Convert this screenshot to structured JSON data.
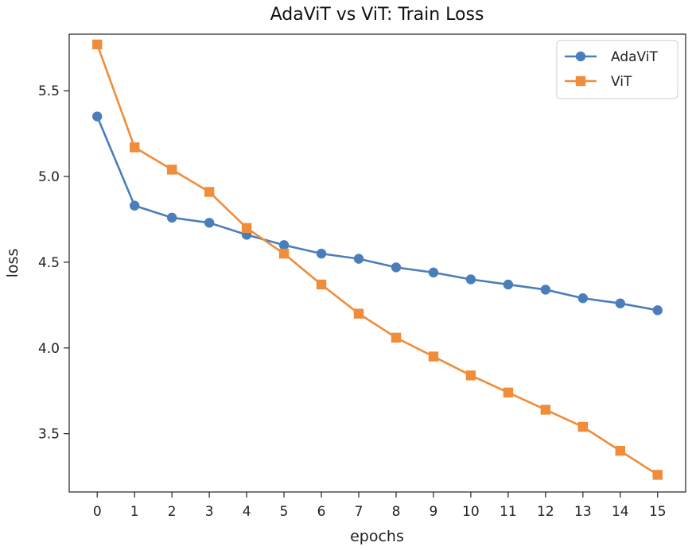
{
  "chart_data": {
    "type": "line",
    "title": "AdaViT vs ViT: Train Loss",
    "xlabel": "epochs",
    "ylabel": "loss",
    "x": [
      0,
      1,
      2,
      3,
      4,
      5,
      6,
      7,
      8,
      9,
      10,
      11,
      12,
      13,
      14,
      15
    ],
    "xlim": [
      -0.75,
      15.75
    ],
    "ylim": [
      3.16,
      5.83
    ],
    "xticks": [
      "0",
      "1",
      "2",
      "3",
      "4",
      "5",
      "6",
      "7",
      "8",
      "9",
      "10",
      "11",
      "12",
      "13",
      "14",
      "15"
    ],
    "yticks": [
      {
        "value": 3.5,
        "label": "3.5"
      },
      {
        "value": 4.0,
        "label": "4.0"
      },
      {
        "value": 4.5,
        "label": "4.5"
      },
      {
        "value": 5.0,
        "label": "5.0"
      },
      {
        "value": 5.5,
        "label": "5.5"
      }
    ],
    "grid": false,
    "legend_position": "top-right",
    "series": [
      {
        "name": "AdaViT",
        "marker": "circle",
        "color": "#4a7ebb",
        "values": [
          5.35,
          4.83,
          4.76,
          4.73,
          4.66,
          4.6,
          4.55,
          4.52,
          4.47,
          4.44,
          4.4,
          4.37,
          4.34,
          4.29,
          4.26,
          4.22
        ]
      },
      {
        "name": "ViT",
        "marker": "square",
        "color": "#f08c3a",
        "values": [
          5.77,
          5.17,
          5.04,
          4.91,
          4.7,
          4.55,
          4.37,
          4.2,
          4.06,
          3.95,
          3.84,
          3.74,
          3.64,
          3.54,
          3.4,
          3.26
        ]
      }
    ]
  }
}
